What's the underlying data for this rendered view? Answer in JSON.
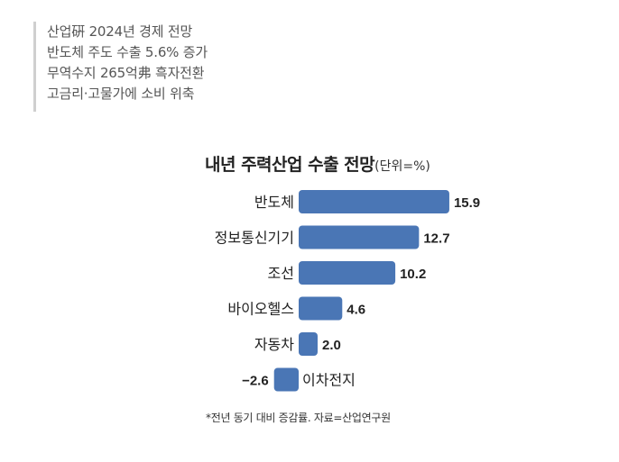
{
  "headlines": [
    "산업硏 2024년 경제 전망",
    "반도체 주도 수출 5.6% 증가",
    "무역수지 265억弗 흑자전환",
    "고금리·고물가에 소비 위축"
  ],
  "chart_title": "내년 주력산업 수출 전망",
  "chart_unit": "(단위=%)",
  "footnote": "*전년 동기 대비 증감률. 자료=산업연구원",
  "colors": {
    "bar": "#4a76b5"
  },
  "chart_data": {
    "type": "bar",
    "orientation": "horizontal",
    "title": "내년 주력산업 수출 전망",
    "unit": "(단위=%)",
    "categories": [
      "반도체",
      "정보통신기기",
      "조선",
      "바이오헬스",
      "자동차",
      "이차전지"
    ],
    "values": [
      15.9,
      12.7,
      10.2,
      4.6,
      2.0,
      -2.6
    ],
    "value_labels": [
      "15.9",
      "12.7",
      "10.2",
      "4.6",
      "2.0",
      "−2.6"
    ],
    "grid": false,
    "legend": "none"
  }
}
